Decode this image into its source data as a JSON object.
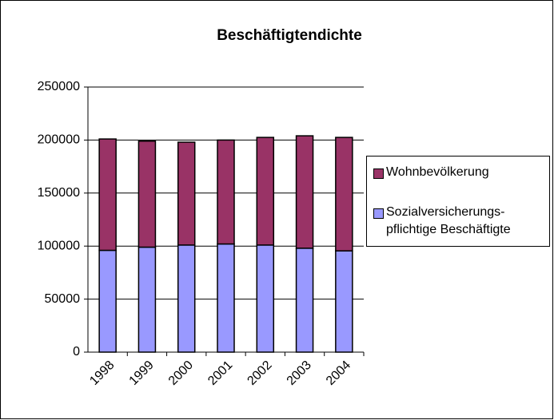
{
  "chart_data": {
    "type": "stacked_bar",
    "title": "Beschäftigtendichte",
    "categories": [
      "1998",
      "1999",
      "2000",
      "2001",
      "2002",
      "2003",
      "2004"
    ],
    "series": [
      {
        "name": "Sozialversicherungs-pflichtige Beschäftigte",
        "color": "#9999ff",
        "values": [
          96000,
          99000,
          101000,
          102000,
          101000,
          98000,
          95500
        ]
      },
      {
        "name": "Wohnbevölkerung",
        "color": "#993366",
        "values": [
          105000,
          100000,
          97000,
          98000,
          101500,
          106000,
          107000
        ]
      }
    ],
    "ylim": [
      0,
      250000
    ],
    "yticks": [
      0,
      50000,
      100000,
      150000,
      200000,
      250000
    ],
    "grid": true,
    "legend": "right"
  }
}
